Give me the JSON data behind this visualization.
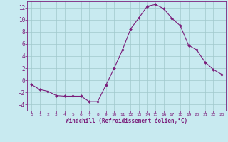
{
  "x": [
    0,
    1,
    2,
    3,
    4,
    5,
    6,
    7,
    8,
    9,
    10,
    11,
    12,
    13,
    14,
    15,
    16,
    17,
    18,
    19,
    20,
    21,
    22,
    23
  ],
  "y": [
    -0.7,
    -1.5,
    -1.8,
    -2.5,
    -2.6,
    -2.6,
    -2.6,
    -3.5,
    -3.5,
    -0.8,
    2.0,
    5.0,
    8.5,
    10.3,
    12.2,
    12.5,
    11.8,
    10.2,
    9.0,
    5.8,
    5.0,
    3.0,
    1.8,
    1.0
  ],
  "line_color": "#7B1E7B",
  "marker": "D",
  "marker_size": 2.0,
  "bg_color": "#C8EAF0",
  "grid_color": "#A0C8CC",
  "xlabel": "Windchill (Refroidissement éolien,°C)",
  "xlabel_color": "#7B1E7B",
  "tick_color": "#7B1E7B",
  "spine_color": "#7B1E7B",
  "ylim": [
    -5,
    13
  ],
  "xlim": [
    -0.5,
    23.5
  ],
  "yticks": [
    -4,
    -2,
    0,
    2,
    4,
    6,
    8,
    10,
    12
  ],
  "xticks": [
    0,
    1,
    2,
    3,
    4,
    5,
    6,
    7,
    8,
    9,
    10,
    11,
    12,
    13,
    14,
    15,
    16,
    17,
    18,
    19,
    20,
    21,
    22,
    23
  ],
  "xtick_fontsize": 4.5,
  "ytick_fontsize": 5.5,
  "xlabel_fontsize": 5.5
}
